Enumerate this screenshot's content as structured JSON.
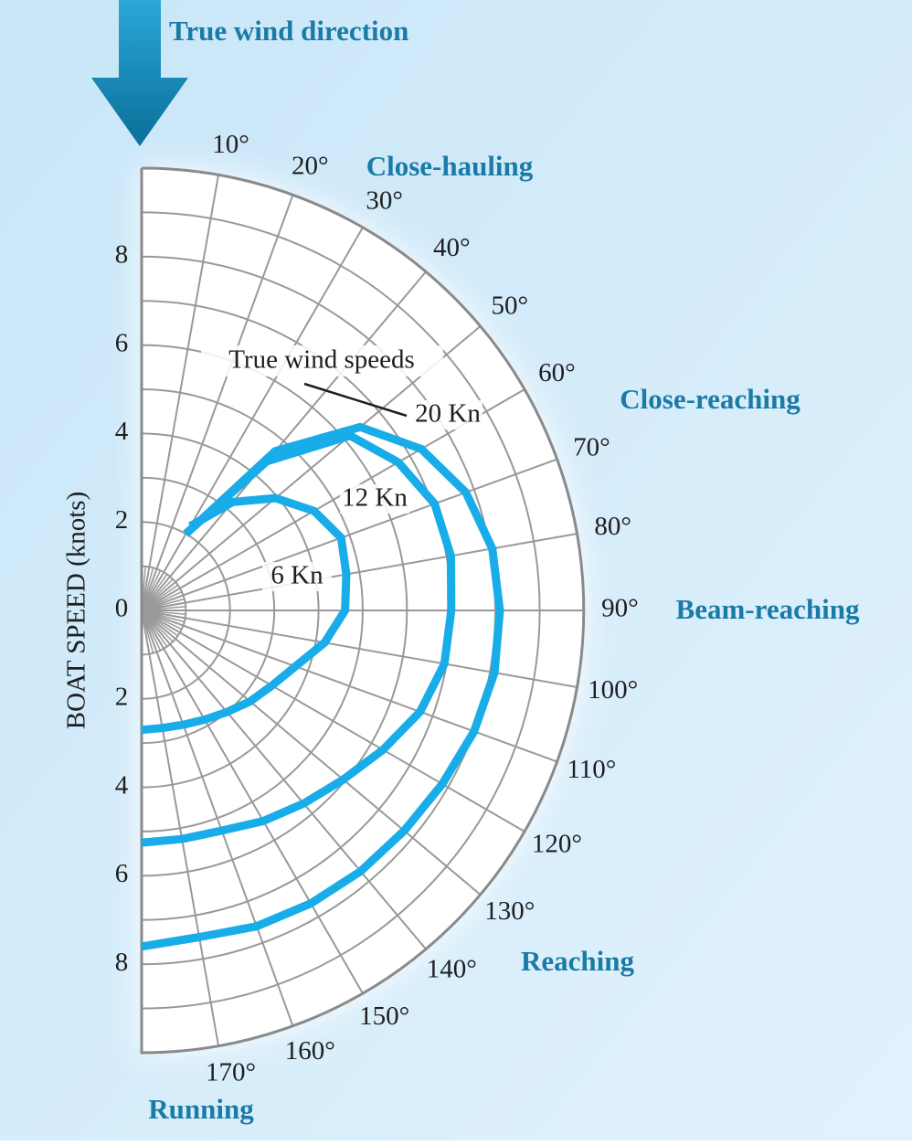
{
  "chart_data": {
    "type": "polar-line",
    "title": "True wind direction",
    "r_axis_label": "BOAT SPEED (knots)",
    "annotation": "True wind speeds",
    "sectors": [
      "Close-hauling",
      "Close-reaching",
      "Beam-reaching",
      "Reaching",
      "Running"
    ],
    "x": [
      30,
      40,
      50,
      60,
      70,
      80,
      90,
      100,
      110,
      120,
      130,
      140,
      150,
      160,
      170,
      180
    ],
    "series": [
      {
        "name": "6 Kn",
        "color": "#18ade8",
        "values": [
          2.2,
          3.2,
          3.95,
          4.5,
          4.8,
          4.7,
          4.6,
          4.2,
          3.7,
          3.4,
          3.2,
          3.0,
          2.85,
          2.75,
          2.7,
          2.7
        ]
      },
      {
        "name": "12 Kn",
        "color": "#18ade8",
        "values": [
          2.0,
          4.4,
          6.15,
          6.7,
          7.05,
          7.1,
          7.0,
          6.95,
          6.7,
          6.3,
          5.95,
          5.7,
          5.5,
          5.3,
          5.25,
          5.25
        ]
      },
      {
        "name": "20 Kn",
        "color": "#18ade8",
        "values": [
          2.0,
          4.7,
          6.45,
          7.3,
          7.8,
          8.05,
          8.1,
          8.1,
          8.0,
          7.85,
          7.75,
          7.7,
          7.65,
          7.6,
          7.5,
          7.6
        ]
      }
    ],
    "rlim": [
      0,
      10
    ],
    "rticks": [
      2,
      4,
      6,
      8
    ],
    "thetalim": [
      0,
      180
    ],
    "thetaticks": [
      {
        "value": 10,
        "label": "10°"
      },
      {
        "value": 20,
        "label": "20°"
      },
      {
        "value": 30,
        "label": "30°"
      },
      {
        "value": 40,
        "label": "40°"
      },
      {
        "value": 50,
        "label": "50°"
      },
      {
        "value": 60,
        "label": "60°"
      },
      {
        "value": 70,
        "label": "70°"
      },
      {
        "value": 80,
        "label": "80°"
      },
      {
        "value": 90,
        "label": "90°"
      },
      {
        "value": 100,
        "label": "100°"
      },
      {
        "value": 110,
        "label": "110°"
      },
      {
        "value": 120,
        "label": "120°"
      },
      {
        "value": 130,
        "label": "130°"
      },
      {
        "value": 140,
        "label": "140°"
      },
      {
        "value": 150,
        "label": "150°"
      },
      {
        "value": 160,
        "label": "160°"
      },
      {
        "value": 170,
        "label": "170°"
      }
    ],
    "grid": true,
    "minor_grid": true
  }
}
